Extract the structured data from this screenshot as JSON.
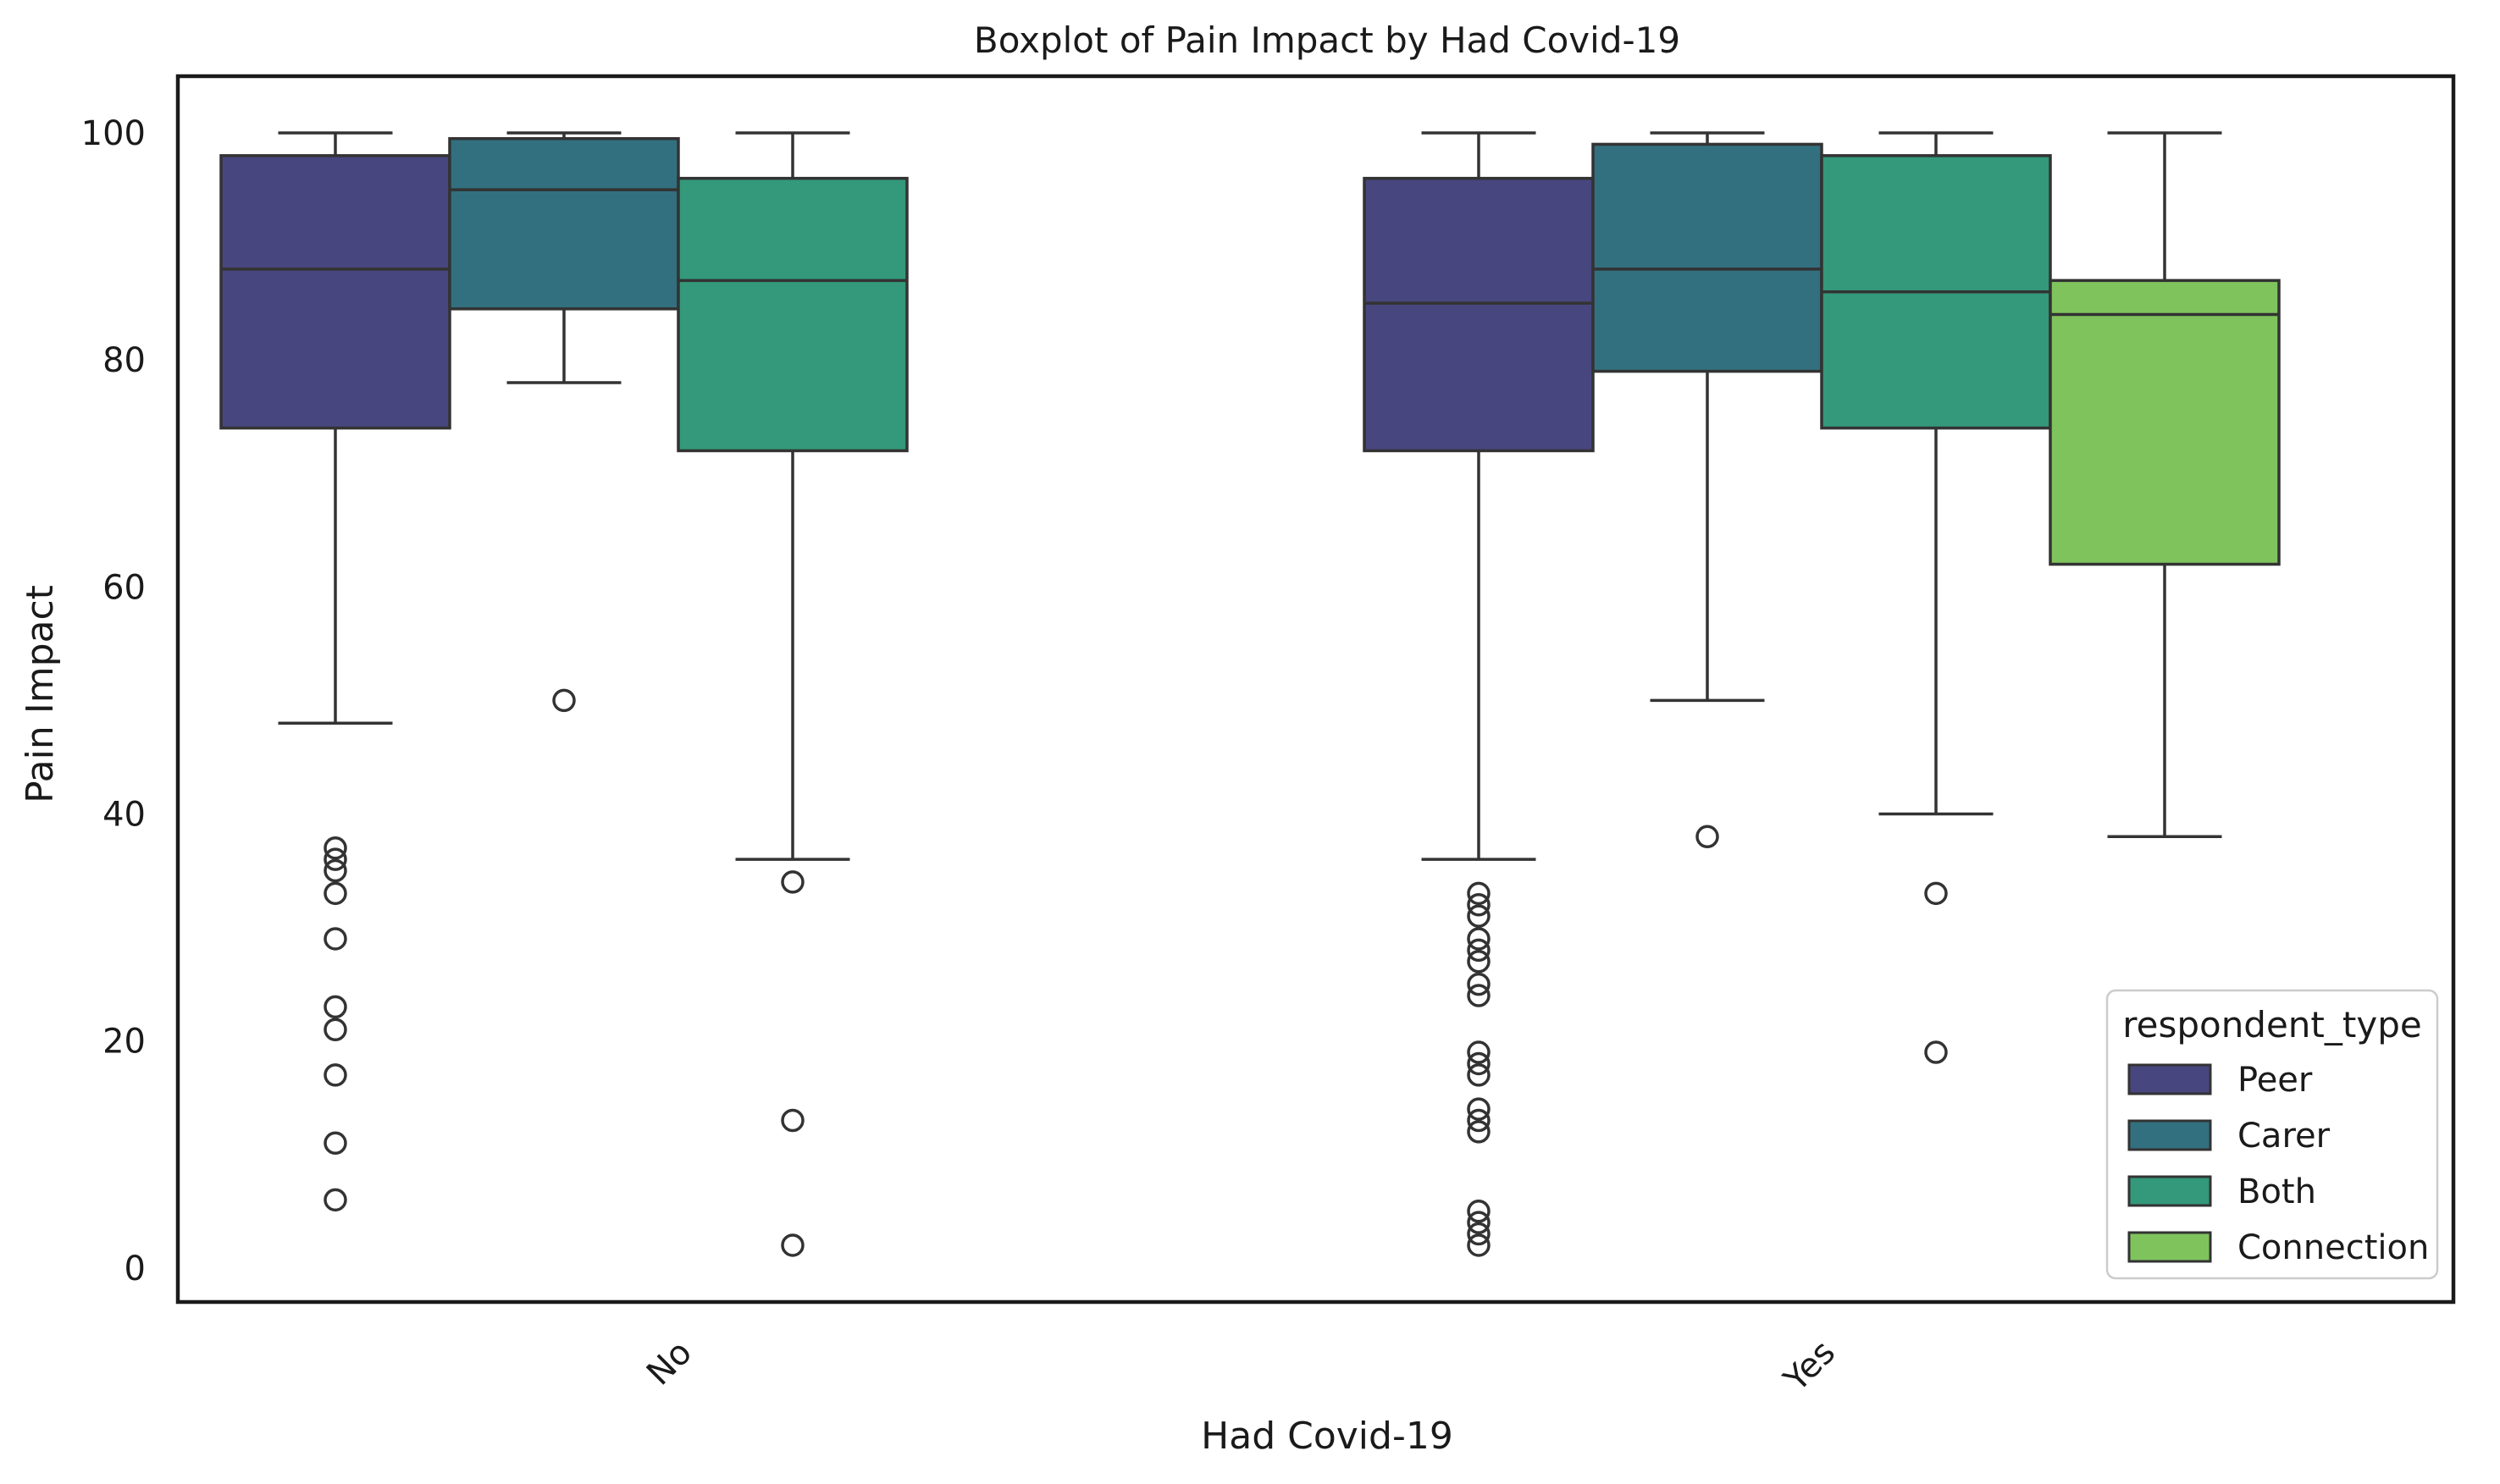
{
  "chart_data": {
    "type": "box",
    "title": "Boxplot of Pain Impact by Had Covid-19",
    "xlabel": "Had Covid-19",
    "ylabel": "Pain Impact",
    "ylim": [
      -3,
      105
    ],
    "yticks": [
      0,
      20,
      40,
      60,
      80,
      100
    ],
    "categories": [
      "No",
      "Yes"
    ],
    "grid": false,
    "legend": {
      "title": "respondent_type",
      "placement": "lower-right",
      "entries": [
        "Peer",
        "Carer",
        "Both",
        "Connection"
      ]
    },
    "colors": {
      "Peer": "#48467e",
      "Carer": "#33707f",
      "Both": "#33997a",
      "Connection": "#7fc35d",
      "edge": "#333333"
    },
    "series": [
      {
        "name": "Peer",
        "boxes": [
          {
            "category": "No",
            "whisker_low": 48,
            "q1": 74,
            "median": 88,
            "q3": 98,
            "whisker_high": 100,
            "outliers": [
              37,
              36,
              35,
              33,
              29,
              23,
              21,
              17,
              11,
              6
            ]
          },
          {
            "category": "Yes",
            "whisker_low": 36,
            "q1": 72,
            "median": 85,
            "q3": 96,
            "whisker_high": 100,
            "outliers": [
              33,
              32,
              31,
              29,
              28,
              27,
              25,
              24,
              19,
              18,
              17,
              14,
              13,
              12,
              5,
              4,
              3,
              2
            ]
          }
        ]
      },
      {
        "name": "Carer",
        "boxes": [
          {
            "category": "No",
            "whisker_low": 78,
            "q1": 84.5,
            "median": 95,
            "q3": 99.5,
            "whisker_high": 100,
            "outliers": [
              50
            ]
          },
          {
            "category": "Yes",
            "whisker_low": 50,
            "q1": 79,
            "median": 88,
            "q3": 99,
            "whisker_high": 100,
            "outliers": [
              38
            ]
          }
        ]
      },
      {
        "name": "Both",
        "boxes": [
          {
            "category": "No",
            "whisker_low": 36,
            "q1": 72,
            "median": 87,
            "q3": 96,
            "whisker_high": 100,
            "outliers": [
              34,
              13,
              2
            ]
          },
          {
            "category": "Yes",
            "whisker_low": 40,
            "q1": 74,
            "median": 86,
            "q3": 98,
            "whisker_high": 100,
            "outliers": [
              33,
              19
            ]
          }
        ]
      },
      {
        "name": "Connection",
        "boxes": [
          {
            "category": "Yes",
            "whisker_low": 38,
            "q1": 62,
            "median": 84,
            "q3": 87,
            "whisker_high": 100,
            "outliers": []
          }
        ]
      }
    ]
  }
}
